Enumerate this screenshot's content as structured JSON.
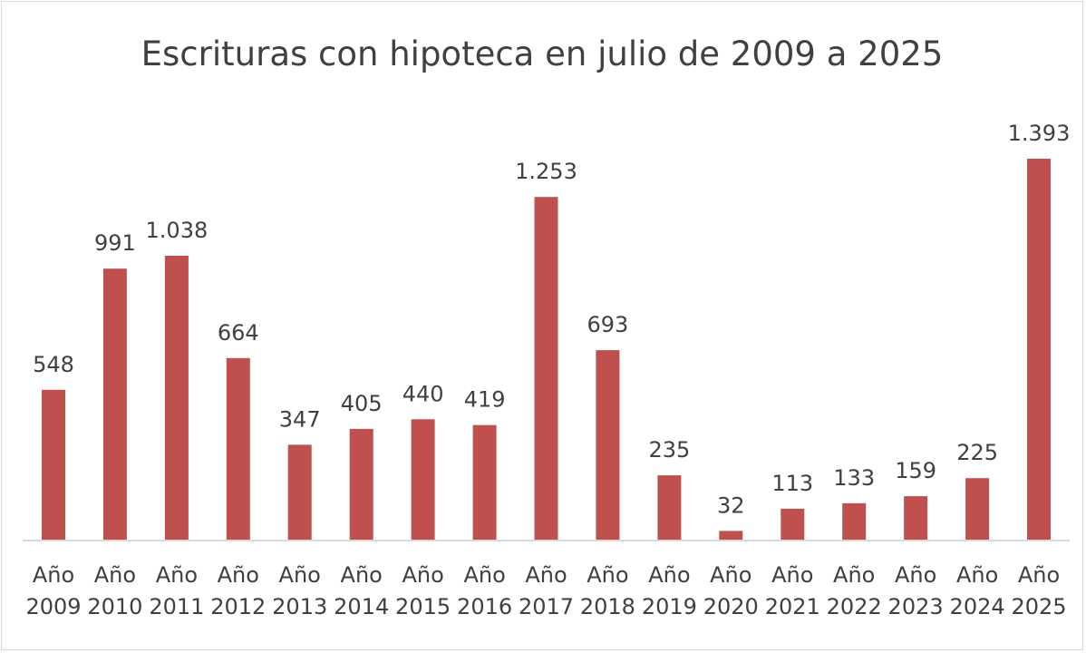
{
  "chart_data": {
    "type": "bar",
    "title": "Escrituras con hipoteca en julio de 2009 a 2025",
    "xlabel": "",
    "ylabel": "",
    "categories": [
      [
        "Año",
        "2009"
      ],
      [
        "Año",
        "2010"
      ],
      [
        "Año",
        "2011"
      ],
      [
        "Año",
        "2012"
      ],
      [
        "Año",
        "2013"
      ],
      [
        "Año",
        "2014"
      ],
      [
        "Año",
        "2015"
      ],
      [
        "Año",
        "2016"
      ],
      [
        "Año",
        "2017"
      ],
      [
        "Año",
        "2018"
      ],
      [
        "Año",
        "2019"
      ],
      [
        "Año",
        "2020"
      ],
      [
        "Año",
        "2021"
      ],
      [
        "Año",
        "2022"
      ],
      [
        "Año",
        "2023"
      ],
      [
        "Año",
        "2024"
      ],
      [
        "Año",
        "2025"
      ]
    ],
    "values": [
      548,
      991,
      1038,
      664,
      347,
      405,
      440,
      419,
      1253,
      693,
      235,
      32,
      113,
      133,
      159,
      225,
      1393
    ],
    "data_labels": [
      "548",
      "991",
      "1.038",
      "664",
      "347",
      "405",
      "440",
      "419",
      "1.253",
      "693",
      "235",
      "32",
      "113",
      "133",
      "159",
      "225",
      "1.393"
    ],
    "bar_color": "#c0504d",
    "axis_color": "#d9d9d9",
    "text_color": "#404040",
    "grid": false,
    "legend": "none",
    "ylim": [
      0,
      1400
    ]
  }
}
